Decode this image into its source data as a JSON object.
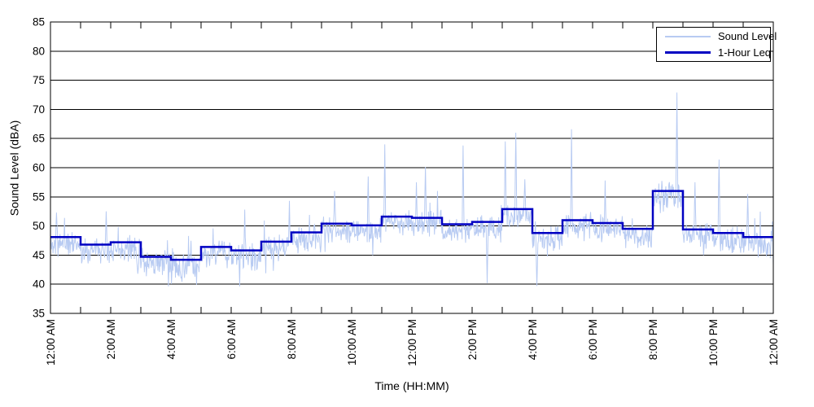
{
  "chart_data": {
    "type": "line",
    "title": "",
    "xlabel": "Time (HH:MM)",
    "ylabel": "Sound Level (dBA)",
    "ylim": [
      35,
      85
    ],
    "ytick_values": [
      35,
      40,
      45,
      50,
      55,
      60,
      65,
      70,
      75,
      80,
      85
    ],
    "xlim_hours": [
      0,
      24
    ],
    "xtick_minor_every_hours": 1,
    "xtick_hours": [
      0,
      2,
      4,
      6,
      8,
      10,
      12,
      14,
      16,
      18,
      20,
      22,
      24
    ],
    "xtick_labels": [
      "12:00 AM",
      "2:00 AM",
      "4:00 AM",
      "6:00 AM",
      "8:00 AM",
      "10:00 AM",
      "12:00 PM",
      "2:00 PM",
      "4:00 PM",
      "6:00 PM",
      "8:00 PM",
      "10:00 PM",
      "12:00 AM"
    ],
    "grid": "horizontal-only",
    "grid_color": "#000000",
    "box_color": "#000000",
    "legend": {
      "position": "top-right",
      "entries": [
        {
          "label": "Sound Level",
          "color": "#b8cbf2",
          "line_width": 1
        },
        {
          "label": "1-Hour Leq",
          "color": "#0000c2",
          "line_width": 2.5
        }
      ]
    },
    "series": [
      {
        "name": "1-Hour Leq",
        "type": "step",
        "units": "dBA",
        "hour_start": 0,
        "hourly_values": [
          48.1,
          46.8,
          47.2,
          44.7,
          44.2,
          46.4,
          45.8,
          47.3,
          48.9,
          50.4,
          50.1,
          51.6,
          51.4,
          50.3,
          50.7,
          52.9,
          48.8,
          51.0,
          50.5,
          49.5,
          56.0,
          49.4,
          48.8,
          48.1
        ]
      },
      {
        "name": "Sound Level",
        "type": "noisy-line",
        "units": "dBA",
        "samples_per_hour": 60,
        "seed": 11,
        "jitter": {
          "offset": -1.1,
          "spread": 2.6,
          "spike_prob": 0.035,
          "spike_max": 5.5,
          "dip_prob": 0.02,
          "dip_max": 3.5,
          "clamp_min": 36.5
        },
        "peaks": [
          {
            "hour": 0.2,
            "value": 52.3
          },
          {
            "hour": 1.85,
            "value": 52.5
          },
          {
            "hour": 6.45,
            "value": 52.8
          },
          {
            "hour": 7.93,
            "value": 54.3
          },
          {
            "hour": 9.43,
            "value": 56.0
          },
          {
            "hour": 10.55,
            "value": 58.5
          },
          {
            "hour": 11.1,
            "value": 64.0
          },
          {
            "hour": 12.15,
            "value": 57.5
          },
          {
            "hour": 12.45,
            "value": 60.1
          },
          {
            "hour": 13.7,
            "value": 63.8
          },
          {
            "hour": 15.1,
            "value": 64.5
          },
          {
            "hour": 15.45,
            "value": 66.0
          },
          {
            "hour": 15.75,
            "value": 58.0
          },
          {
            "hour": 17.3,
            "value": 66.6
          },
          {
            "hour": 18.42,
            "value": 57.8
          },
          {
            "hour": 20.8,
            "value": 72.9
          },
          {
            "hour": 21.4,
            "value": 57.5
          },
          {
            "hour": 22.2,
            "value": 61.4
          },
          {
            "hour": 23.15,
            "value": 55.5
          }
        ],
        "lows": [
          {
            "hour": 2.9,
            "value": 41.8
          },
          {
            "hour": 4.8,
            "value": 41.3
          },
          {
            "hour": 14.5,
            "value": 40.2
          },
          {
            "hour": 16.15,
            "value": 39.7
          }
        ]
      }
    ]
  },
  "figure": {
    "background": "#ffffff",
    "text_color": "#000000"
  }
}
